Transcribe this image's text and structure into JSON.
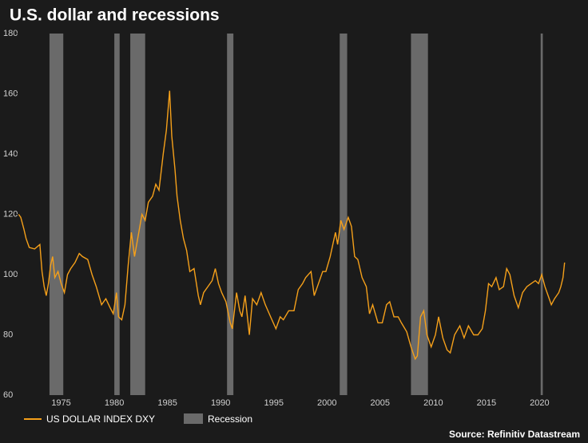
{
  "chart_data": {
    "type": "line",
    "title": "U.S. dollar and recessions",
    "source": "Source: Refinitiv Datastream",
    "x": [
      1971.0,
      1971.2,
      1971.5,
      1971.7,
      1972.0,
      1972.5,
      1973.0,
      1973.2,
      1973.4,
      1973.6,
      1973.8,
      1974.0,
      1974.2,
      1974.4,
      1974.7,
      1975.0,
      1975.3,
      1975.6,
      1975.9,
      1976.3,
      1976.7,
      1977.0,
      1977.5,
      1977.9,
      1978.3,
      1978.8,
      1979.2,
      1979.6,
      1979.9,
      1980.2,
      1980.4,
      1980.7,
      1981.0,
      1981.3,
      1981.6,
      1981.9,
      1982.2,
      1982.6,
      1982.9,
      1983.2,
      1983.6,
      1983.9,
      1984.2,
      1984.6,
      1984.9,
      1985.2,
      1985.4,
      1985.7,
      1985.9,
      1986.2,
      1986.5,
      1986.8,
      1987.1,
      1987.5,
      1987.9,
      1988.1,
      1988.4,
      1988.8,
      1989.2,
      1989.5,
      1989.8,
      1990.1,
      1990.5,
      1990.9,
      1991.1,
      1991.5,
      1991.8,
      1992.0,
      1992.3,
      1992.7,
      1993.0,
      1993.4,
      1993.8,
      1994.2,
      1994.7,
      1995.2,
      1995.6,
      1995.9,
      1996.4,
      1996.9,
      1997.3,
      1997.7,
      1998.0,
      1998.5,
      1998.8,
      1999.2,
      1999.6,
      1999.9,
      2000.3,
      2000.8,
      2001.0,
      2001.3,
      2001.6,
      2002.0,
      2002.3,
      2002.6,
      2002.9,
      2003.3,
      2003.7,
      2004.0,
      2004.3,
      2004.8,
      2005.2,
      2005.6,
      2005.9,
      2006.3,
      2006.7,
      2007.0,
      2007.5,
      2007.9,
      2008.3,
      2008.5,
      2008.8,
      2009.1,
      2009.4,
      2009.8,
      2010.2,
      2010.5,
      2010.9,
      2011.3,
      2011.6,
      2012.0,
      2012.5,
      2012.9,
      2013.3,
      2013.8,
      2014.2,
      2014.6,
      2014.9,
      2015.2,
      2015.5,
      2015.9,
      2016.2,
      2016.6,
      2016.9,
      2017.2,
      2017.6,
      2018.0,
      2018.4,
      2018.8,
      2019.2,
      2019.6,
      2019.9,
      2020.2,
      2020.5,
      2020.8,
      2021.1,
      2021.4,
      2021.8,
      2022.0,
      2022.2,
      2022.35
    ],
    "series": [
      {
        "name": "US DOLLAR INDEX DXY",
        "color": "#f5a01a",
        "values": [
          120,
          119,
          115,
          112,
          109,
          108.5,
          110,
          101,
          96,
          93,
          97,
          103,
          106,
          99,
          101,
          97,
          94,
          100,
          102,
          104,
          107,
          106,
          105,
          100,
          96,
          90,
          92,
          89,
          87,
          94,
          86,
          85,
          90,
          103,
          114,
          106,
          112,
          120,
          118,
          124,
          126,
          130,
          128,
          140,
          148,
          161,
          146,
          135,
          126,
          118,
          112,
          108,
          101,
          102,
          93,
          90,
          94,
          96,
          98,
          102,
          97,
          94,
          91,
          84,
          82,
          94,
          88,
          86,
          93,
          80,
          92,
          90,
          94,
          90,
          86,
          82,
          86,
          85,
          88,
          88,
          95,
          97,
          99,
          101,
          93,
          97,
          101,
          101,
          106,
          114,
          110,
          118,
          115,
          119,
          116,
          106,
          105,
          99,
          96,
          87,
          90,
          84,
          84,
          90,
          91,
          86,
          86,
          84,
          81,
          76,
          72,
          73,
          86,
          88,
          80,
          76,
          80,
          86,
          79,
          75,
          74,
          80,
          83,
          79,
          83,
          80,
          80,
          82,
          88,
          97,
          96,
          99,
          95,
          96,
          102,
          100,
          93,
          89,
          94,
          96,
          97,
          98,
          97,
          100,
          96,
          93,
          90,
          92,
          94,
          96,
          99,
          104
        ]
      }
    ],
    "recessions": {
      "name": "Recession",
      "color": "#6a6a6a",
      "ranges": [
        [
          1973.9,
          1975.2
        ],
        [
          1980.0,
          1980.5
        ],
        [
          1981.5,
          1982.9
        ],
        [
          1990.6,
          1991.2
        ],
        [
          2001.2,
          2001.9
        ],
        [
          2007.9,
          2009.5
        ],
        [
          2020.1,
          2020.3
        ]
      ]
    },
    "xlim": [
      1970.9,
      2023.5
    ],
    "xticks": [
      1975,
      1980,
      1985,
      1990,
      1995,
      2000,
      2005,
      2010,
      2015,
      2020
    ],
    "ylim": [
      60,
      180
    ],
    "yticks": [
      60,
      80,
      100,
      120,
      140,
      160,
      180
    ]
  }
}
